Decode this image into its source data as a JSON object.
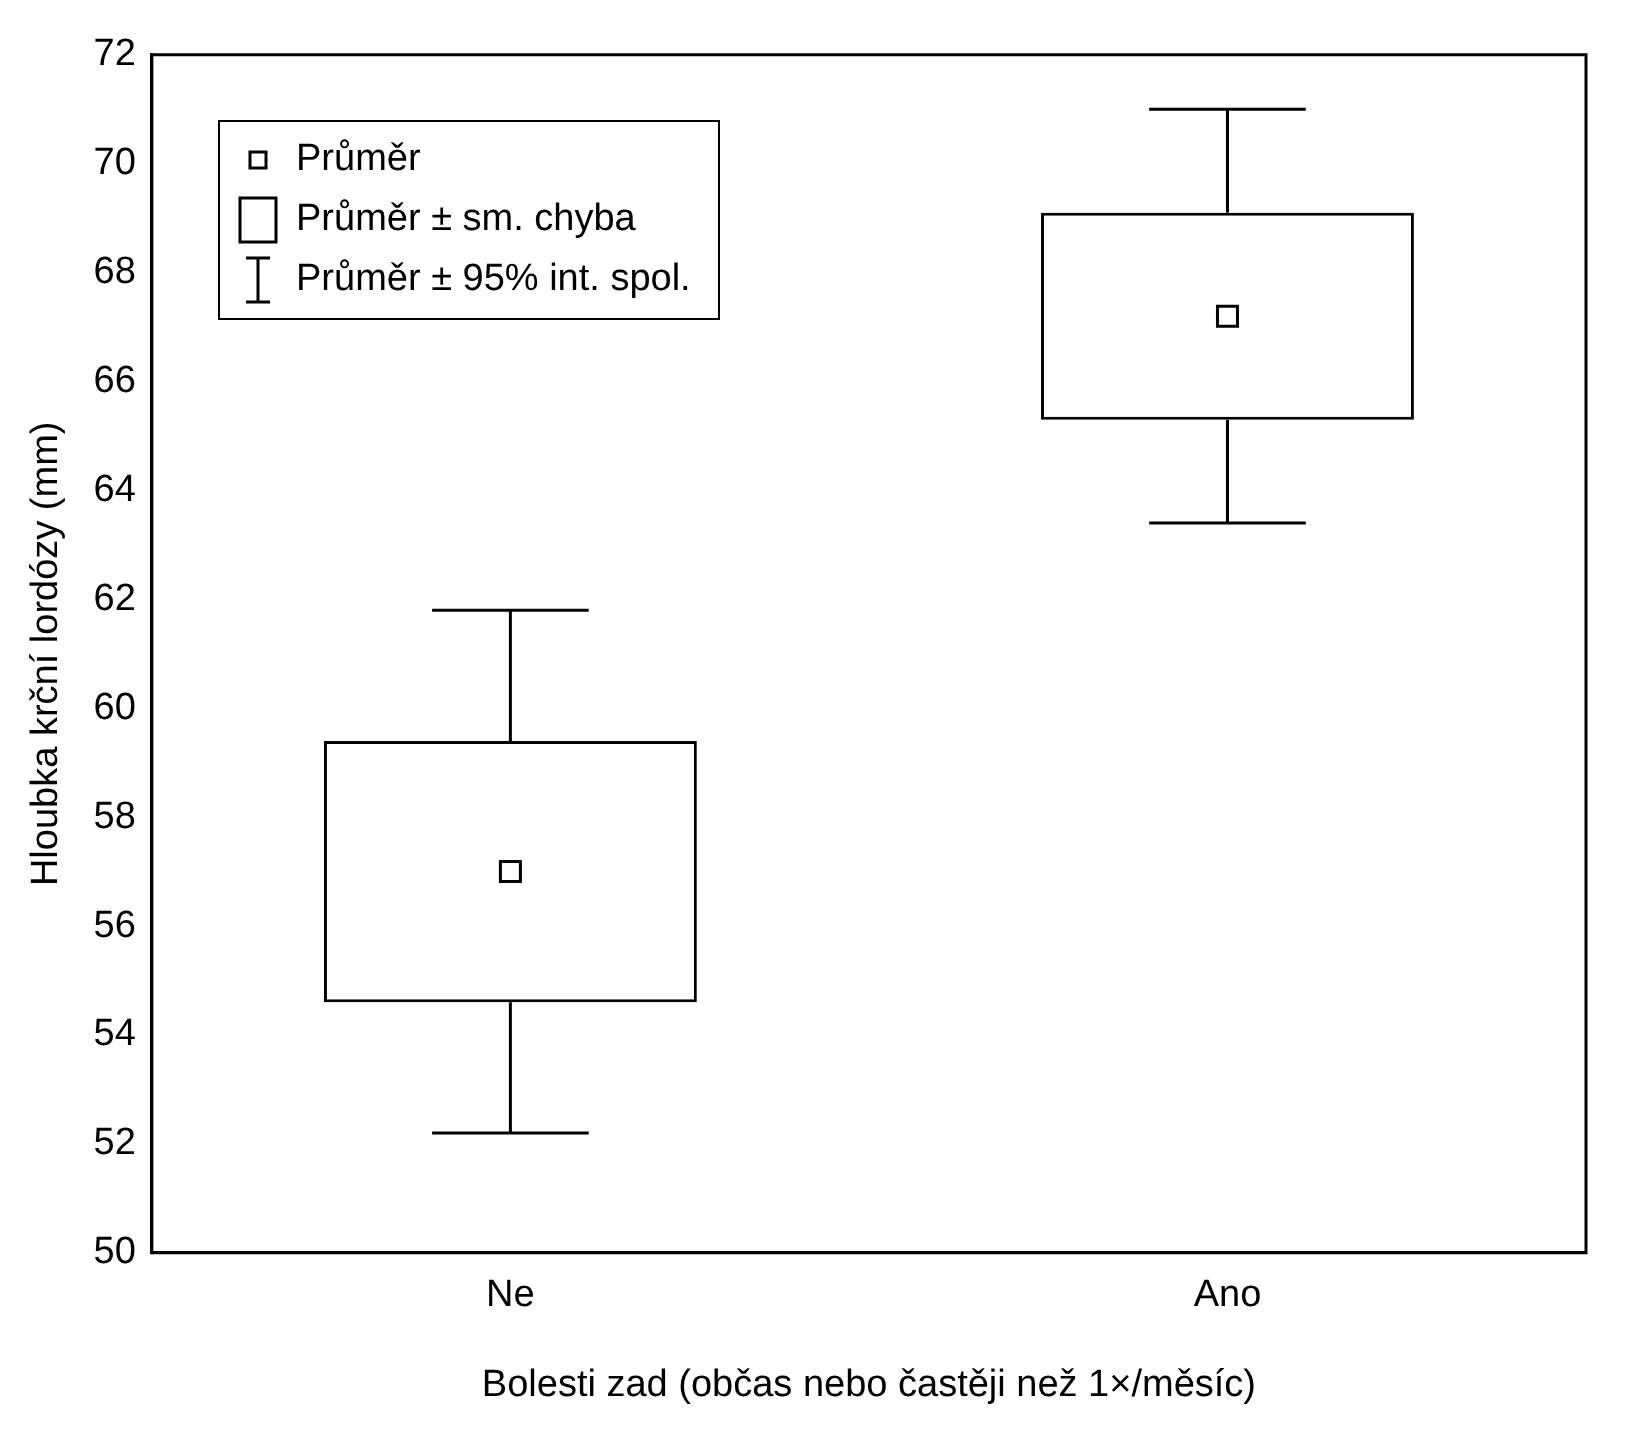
{
  "chart_data": {
    "type": "box",
    "xlabel": "Bolesti zad (občas nebo častěji než 1×/měsíc)",
    "ylabel": "Hloubka krční lordózy (mm)",
    "categories": [
      "Ne",
      "Ano"
    ],
    "boxes": [
      {
        "low": 52.2,
        "q1": 54.6,
        "q3": 59.4,
        "high": 61.8,
        "mean": 57.0
      },
      {
        "low": 63.4,
        "q1": 65.3,
        "q3": 69.1,
        "high": 71.0,
        "mean": 67.2
      }
    ],
    "color": "#000000",
    "ylim": [
      50,
      72
    ],
    "yticks": [
      50,
      52,
      54,
      56,
      58,
      60,
      62,
      64,
      66,
      68,
      70,
      72
    ],
    "grid": false,
    "annotations": [
      "Průměr",
      "Průměr ± sm. chyba",
      "Průměr ± 95% int. spol."
    ]
  }
}
